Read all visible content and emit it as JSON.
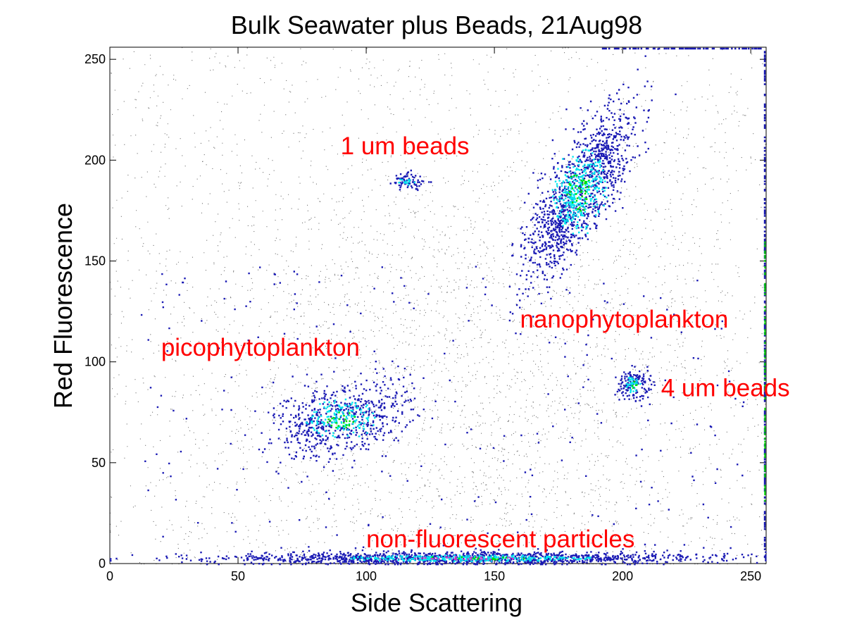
{
  "chart_data": {
    "type": "scatter",
    "title": "Bulk Seawater plus Beads, 21Aug98",
    "xlabel": "Side Scattering",
    "ylabel": "Red Fluorescence",
    "xlim": [
      0,
      256
    ],
    "ylim": [
      0,
      256
    ],
    "xticks": [
      0,
      50,
      100,
      150,
      200,
      250
    ],
    "yticks": [
      0,
      50,
      100,
      150,
      200,
      250
    ],
    "grid": false,
    "colors": {
      "annotation": "#ff0000",
      "sparse": "#000000",
      "low": "#1a1ab4",
      "mid": "#00e5ee",
      "high": "#00dd00",
      "peak": "#cc33cc"
    },
    "annotations": [
      {
        "text": "1 um beads",
        "x": 90,
        "y": 203
      },
      {
        "text": "nanophytoplankton",
        "x": 160,
        "y": 117
      },
      {
        "text": "picophytoplankton",
        "x": 20,
        "y": 103
      },
      {
        "text": "4 um beads",
        "x": 215,
        "y": 83
      },
      {
        "text": "non-fluorescent particles",
        "x": 100,
        "y": 8
      }
    ],
    "populations": [
      {
        "label": "1 um beads",
        "cx": 116,
        "cy": 190,
        "sx": 3.5,
        "sy": 2,
        "count": 90
      },
      {
        "label": "nanophytoplankton",
        "cx": 183,
        "cy": 185,
        "sx": 10,
        "sy": 20,
        "rho": 0.75,
        "count": 1500
      },
      {
        "label": "picophytoplankton",
        "cx": 90,
        "cy": 72,
        "sx": 13,
        "sy": 9,
        "rho": 0.35,
        "count": 750
      },
      {
        "label": "4 um beads",
        "cx": 204,
        "cy": 89,
        "sx": 3,
        "sy": 4,
        "count": 170
      },
      {
        "label": "non-fluorescent particles",
        "cx": 140,
        "cy": 3,
        "sx": 45,
        "sy": 1.5,
        "count": 1600
      }
    ]
  }
}
